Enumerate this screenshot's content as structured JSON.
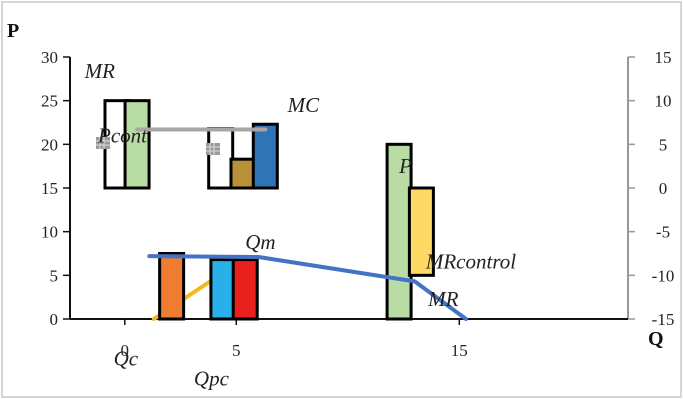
{
  "chart_data": {
    "type": "bar",
    "xlabel": "Q",
    "ylabel": "P",
    "x_ticks": [
      "0",
      "5",
      "15"
    ],
    "y_left": {
      "ticks": [
        0,
        5,
        10,
        15,
        20,
        25,
        30
      ],
      "range": [
        0,
        30
      ]
    },
    "y_right": {
      "ticks": [
        -15,
        -10,
        -5,
        0,
        5,
        10,
        15
      ],
      "range": [
        -15,
        15
      ]
    },
    "grid": false,
    "legend": "none",
    "bars": [
      {
        "x": -0.35,
        "low": 15,
        "high": 25,
        "color": "#ffffff"
      },
      {
        "x": 0.55,
        "low": 15,
        "high": 25,
        "color": "#b9dca4"
      },
      {
        "x": 4.3,
        "low": 15,
        "high": 21.8,
        "color": "#ffffff"
      },
      {
        "x": 5.3,
        "low": 15,
        "high": 18.3,
        "color": "#b8903a"
      },
      {
        "x": 6.3,
        "low": 15,
        "high": 22.3,
        "color": "#2f74b5"
      },
      {
        "x": 2.1,
        "low": 0,
        "high": 7.5,
        "color": "#ee7d31"
      },
      {
        "x": 4.4,
        "low": 0,
        "high": 6.8,
        "color": "#2ab0e8"
      },
      {
        "x": 5.4,
        "low": 0,
        "high": 6.8,
        "color": "#e8201e"
      },
      {
        "x": 12.3,
        "low": 0,
        "high": 20,
        "color": "#b9dca4"
      },
      {
        "x": 13.3,
        "low": 5,
        "high": 15,
        "color": "#ffd966"
      }
    ],
    "series": [
      {
        "color": "#a6a6a6",
        "points": [
          [
            0.55,
            21.7
          ],
          [
            6.3,
            21.7
          ]
        ]
      },
      {
        "color": "#4472c4",
        "points": [
          [
            1.1,
            7.2
          ],
          [
            6.0,
            7.1
          ],
          [
            13.0,
            4.3
          ],
          [
            15.3,
            0
          ]
        ]
      },
      {
        "color": "#f5b91c",
        "points": [
          [
            1.3,
            0
          ],
          [
            5.4,
            7.0
          ]
        ]
      }
    ],
    "annotations": [
      {
        "text": "MR",
        "x": -1.8,
        "y": 27.6
      },
      {
        "text": "Pcont",
        "x": -1.2,
        "y": 20.2
      },
      {
        "text": "MC",
        "x": 7.3,
        "y": 23.7
      },
      {
        "text": "P",
        "x": 12.3,
        "y": 16.7
      },
      {
        "text": "Qm",
        "x": 5.4,
        "y": 8.0
      },
      {
        "text": "MRcontrol",
        "x": 13.5,
        "y": 5.8
      },
      {
        "text": "MR",
        "x": 13.6,
        "y": 1.5
      },
      {
        "text": "Qc",
        "x": -0.5,
        "y": -5.3
      },
      {
        "text": "Qpc",
        "x": 3.1,
        "y": -7.6
      }
    ]
  }
}
